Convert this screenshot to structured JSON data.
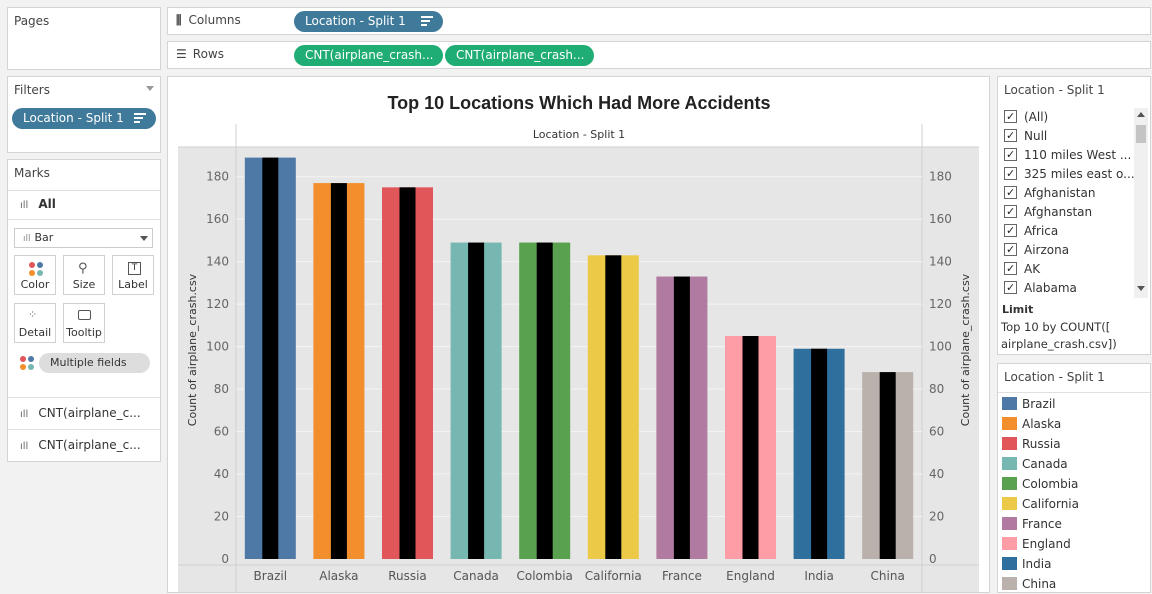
{
  "pages": {
    "title": "Pages"
  },
  "columns_shelf": {
    "label": "Columns",
    "pill": "Location - Split 1"
  },
  "rows_shelf": {
    "label": "Rows",
    "pills": [
      "CNT(airplane_crash...",
      "CNT(airplane_crash..."
    ]
  },
  "filters": {
    "title": "Filters",
    "pill": "Location - Split 1"
  },
  "marks": {
    "title": "Marks",
    "all_label": "All",
    "mark_type": "Bar",
    "buttons": [
      "Color",
      "Size",
      "Label",
      "Detail",
      "Tooltip"
    ],
    "multiple_fields": "Multiple fields",
    "measures": [
      "CNT(airplane_c...",
      "CNT(airplane_c..."
    ]
  },
  "filter_card": {
    "title": "Location - Split 1",
    "items": [
      "(All)",
      "Null",
      "110 miles West ...",
      "325 miles east o...",
      "Afghanistan",
      "Afghanstan",
      "Africa",
      "Airzona",
      "AK",
      "Alabama"
    ],
    "limit_title": "Limit",
    "limit_text": "Top 10 by COUNT([ airplane_crash.csv])"
  },
  "legend": {
    "title": "Location - Split 1",
    "items": [
      {
        "label": "Brazil",
        "color": "#4e79a7"
      },
      {
        "label": "Alaska",
        "color": "#f28e2b"
      },
      {
        "label": "Russia",
        "color": "#e15759"
      },
      {
        "label": "Canada",
        "color": "#76b7b2"
      },
      {
        "label": "Colombia",
        "color": "#59a14f"
      },
      {
        "label": "California",
        "color": "#edc948"
      },
      {
        "label": "France",
        "color": "#b07aa1"
      },
      {
        "label": "England",
        "color": "#ff9da7"
      },
      {
        "label": "India",
        "color": "#2e6f9e"
      },
      {
        "label": "China",
        "color": "#bab0ac"
      }
    ]
  },
  "chart_data": {
    "type": "bar",
    "title": "Top 10 Locations Which Had More Accidents",
    "header": "Location - Split 1",
    "categories": [
      "Brazil",
      "Alaska",
      "Russia",
      "Canada",
      "Colombia",
      "California",
      "France",
      "England",
      "India",
      "China"
    ],
    "series": [
      {
        "values": [
          189,
          177,
          175,
          149,
          149,
          143,
          133,
          105,
          99,
          88
        ]
      },
      {
        "values": [
          189,
          177,
          175,
          149,
          149,
          143,
          133,
          105,
          99,
          88
        ]
      }
    ],
    "colors": [
      "#4e79a7",
      "#f28e2b",
      "#e15759",
      "#76b7b2",
      "#59a14f",
      "#edc948",
      "#b07aa1",
      "#ff9da7",
      "#2e6f9e",
      "#bab0ac"
    ],
    "overlay_color": "#000000",
    "ylabel": "Count of airplane_crash.csv",
    "ylabel_right": "Count of airplane_crash.csv",
    "yticks": [
      0,
      20,
      40,
      60,
      80,
      100,
      120,
      140,
      160,
      180
    ],
    "ylim": [
      0,
      194
    ]
  }
}
